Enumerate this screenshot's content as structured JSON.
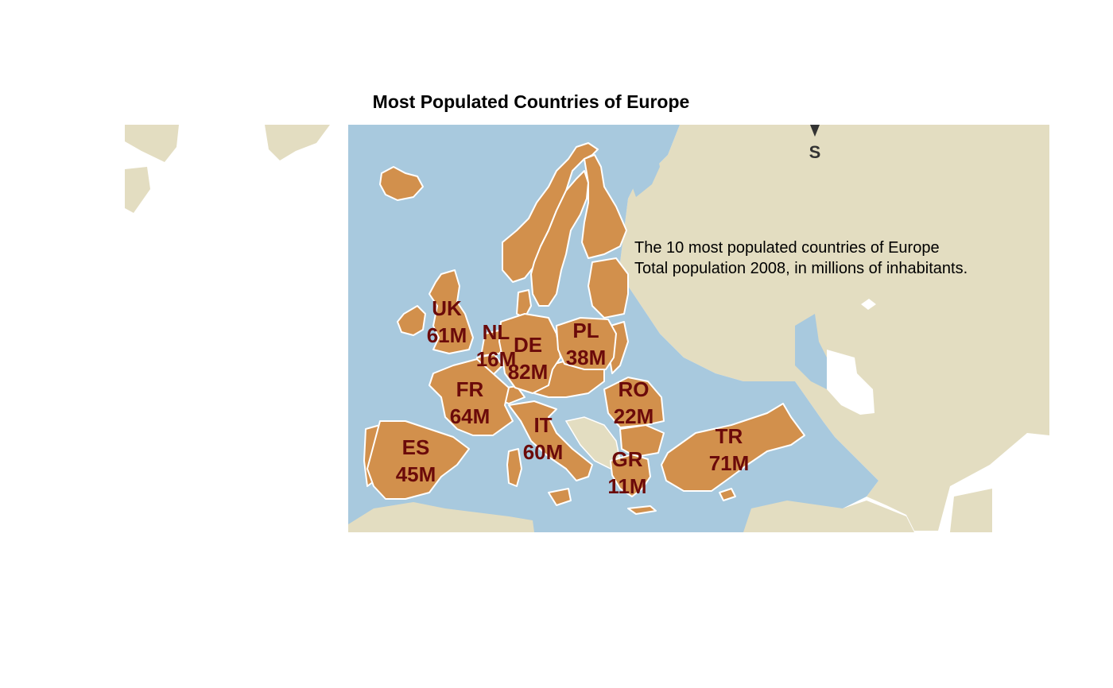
{
  "title": "Most Populated Countries of Europe",
  "description": {
    "line1": "The 10 most populated countries of Europe",
    "line2": "Total population 2008, in millions of inhabitants."
  },
  "compass": {
    "label": "S"
  },
  "colors": {
    "land": "#e3ddc1",
    "sea": "#a8c9de",
    "highlight": "#d2904c",
    "label": "#6b0a0a"
  },
  "countries": [
    {
      "code": "UK",
      "population": "61M"
    },
    {
      "code": "NL",
      "population": "16M"
    },
    {
      "code": "DE",
      "population": "82M"
    },
    {
      "code": "PL",
      "population": "38M"
    },
    {
      "code": "FR",
      "population": "64M"
    },
    {
      "code": "RO",
      "population": "22M"
    },
    {
      "code": "IT",
      "population": "60M"
    },
    {
      "code": "TR",
      "population": "71M"
    },
    {
      "code": "ES",
      "population": "45M"
    },
    {
      "code": "GR",
      "population": "11M"
    }
  ]
}
